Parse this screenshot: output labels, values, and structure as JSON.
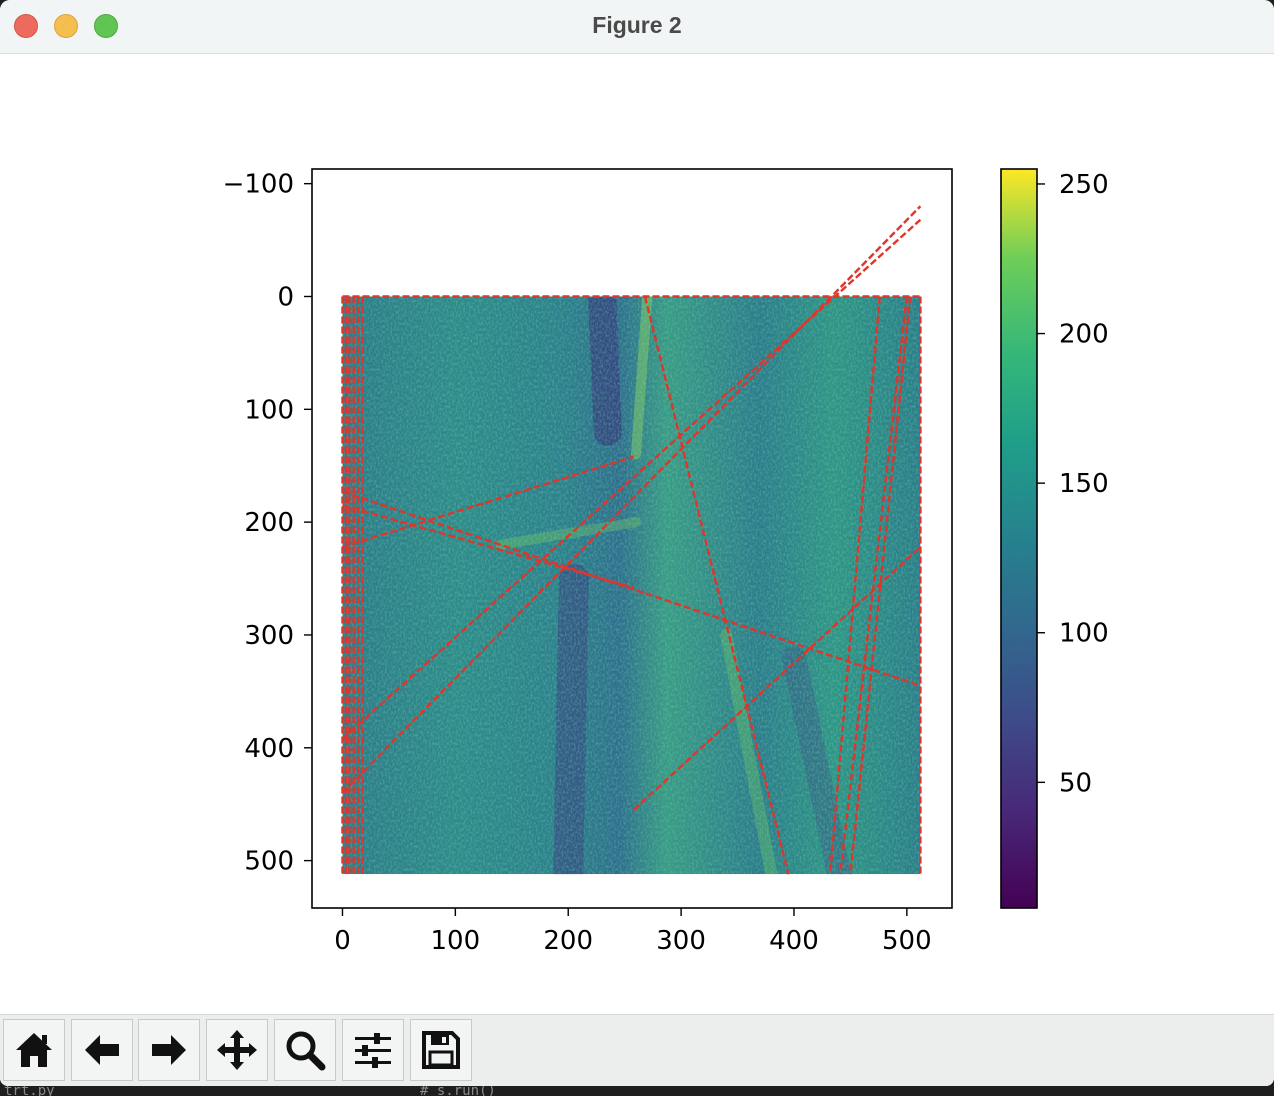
{
  "window": {
    "title": "Figure 2"
  },
  "toolbar": {
    "buttons": [
      {
        "name": "home-button",
        "icon": "home-icon"
      },
      {
        "name": "back-button",
        "icon": "arrow-left-icon"
      },
      {
        "name": "forward-button",
        "icon": "arrow-right-icon"
      },
      {
        "name": "pan-button",
        "icon": "move-icon"
      },
      {
        "name": "zoom-button",
        "icon": "magnifier-icon"
      },
      {
        "name": "configure-subplots-button",
        "icon": "sliders-icon"
      },
      {
        "name": "save-button",
        "icon": "floppy-disk-icon"
      }
    ]
  },
  "underlying_text": {
    "left": "trt.py",
    "right": "# s.run()"
  },
  "chart_data": [
    {
      "type": "heatmap",
      "colormap": "viridis",
      "image_extent": {
        "x": [
          0,
          512
        ],
        "y": [
          0,
          512
        ]
      },
      "xlim": [
        -27,
        540
      ],
      "ylim": [
        542,
        -113
      ],
      "y_axis_inverted": true,
      "x_ticks": [
        "0",
        "100",
        "200",
        "300",
        "400",
        "500"
      ],
      "x_tick_values": [
        0,
        100,
        200,
        300,
        400,
        500
      ],
      "y_ticks": [
        "−100",
        "0",
        "100",
        "200",
        "300",
        "400",
        "500"
      ],
      "y_tick_values": [
        -100,
        0,
        100,
        200,
        300,
        400,
        500
      ],
      "overlay_color": "#e0352b",
      "overlay_style": "dashed",
      "overlay_lines": [
        {
          "x": [
            0,
            0
          ],
          "y": [
            0,
            512
          ]
        },
        {
          "x": [
            3,
            3
          ],
          "y": [
            0,
            512
          ]
        },
        {
          "x": [
            6,
            6
          ],
          "y": [
            0,
            512
          ]
        },
        {
          "x": [
            10,
            10
          ],
          "y": [
            0,
            512
          ]
        },
        {
          "x": [
            14,
            14
          ],
          "y": [
            0,
            512
          ]
        },
        {
          "x": [
            18,
            18
          ],
          "y": [
            0,
            512
          ]
        },
        {
          "x": [
            0,
            512
          ],
          "y": [
            0,
            0
          ]
        },
        {
          "x": [
            512,
            512
          ],
          "y": [
            0,
            512
          ]
        },
        {
          "x": [
            268,
            395
          ],
          "y": [
            0,
            512
          ]
        },
        {
          "x": [
            476,
            432
          ],
          "y": [
            0,
            512
          ]
        },
        {
          "x": [
            500,
            441
          ],
          "y": [
            0,
            512
          ]
        },
        {
          "x": [
            503,
            450
          ],
          "y": [
            0,
            512
          ]
        },
        {
          "x": [
            0,
            512
          ],
          "y": [
            440,
            -80
          ]
        },
        {
          "x": [
            0,
            512
          ],
          "y": [
            392,
            -68
          ]
        },
        {
          "x": [
            0,
            258
          ],
          "y": [
            222,
            142
          ]
        },
        {
          "x": [
            0,
            512
          ],
          "y": [
            173,
            345
          ]
        },
        {
          "x": [
            0,
            258
          ],
          "y": [
            185,
            258
          ]
        },
        {
          "x": [
            258,
            512
          ],
          "y": [
            455,
            222
          ]
        }
      ]
    },
    {
      "type": "colorbar",
      "colormap": "viridis",
      "range": [
        8,
        255
      ],
      "ticks": [
        "50",
        "100",
        "150",
        "200",
        "250"
      ],
      "tick_values": [
        50,
        100,
        150,
        200,
        250
      ]
    }
  ]
}
